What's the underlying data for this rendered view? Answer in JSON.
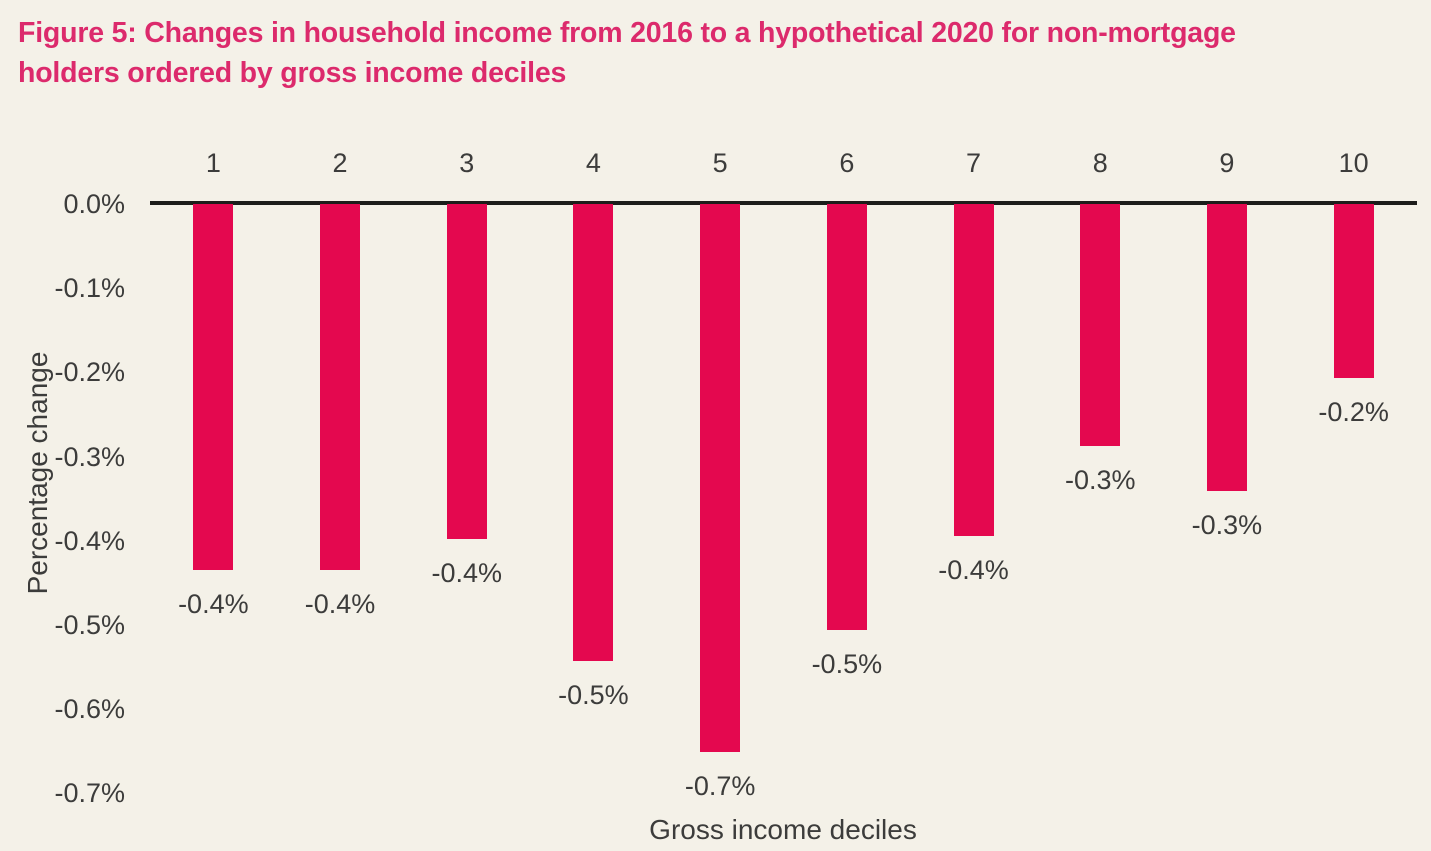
{
  "page": {
    "background": "#f4f1e8"
  },
  "title": {
    "line1": "Figure 5: Changes in household income from 2016 to a hypothetical 2020 for non-mortgage",
    "line2": "holders ordered by gross income deciles",
    "color": "#dc2a6c"
  },
  "chart_data": {
    "type": "bar",
    "title": "Figure 5: Changes in household income from 2016 to a hypothetical 2020 for non-mortgage holders ordered by gross income deciles",
    "xlabel": "Gross income deciles",
    "ylabel": "Percentage change",
    "categories": [
      "1",
      "2",
      "3",
      "4",
      "5",
      "6",
      "7",
      "8",
      "9",
      "10"
    ],
    "values_pct": [
      -0.435,
      -0.435,
      -0.398,
      -0.543,
      -0.651,
      -0.506,
      -0.394,
      -0.287,
      -0.341,
      -0.207
    ],
    "value_labels": [
      "-0.4%",
      "-0.4%",
      "-0.4%",
      "-0.5%",
      "-0.7%",
      "-0.5%",
      "-0.4%",
      "-0.3%",
      "-0.3%",
      "-0.2%"
    ],
    "y_ticks": [
      "0.0%",
      "-0.1%",
      "-0.2%",
      "-0.3%",
      "-0.4%",
      "-0.5%",
      "-0.6%",
      "-0.7%"
    ],
    "ylim": [
      -0.7,
      0.0
    ],
    "grid": false,
    "legend": false,
    "bar_color": "#e4084f",
    "axis_color": "#1d1d1b",
    "text_color": "#3c3c3b"
  }
}
